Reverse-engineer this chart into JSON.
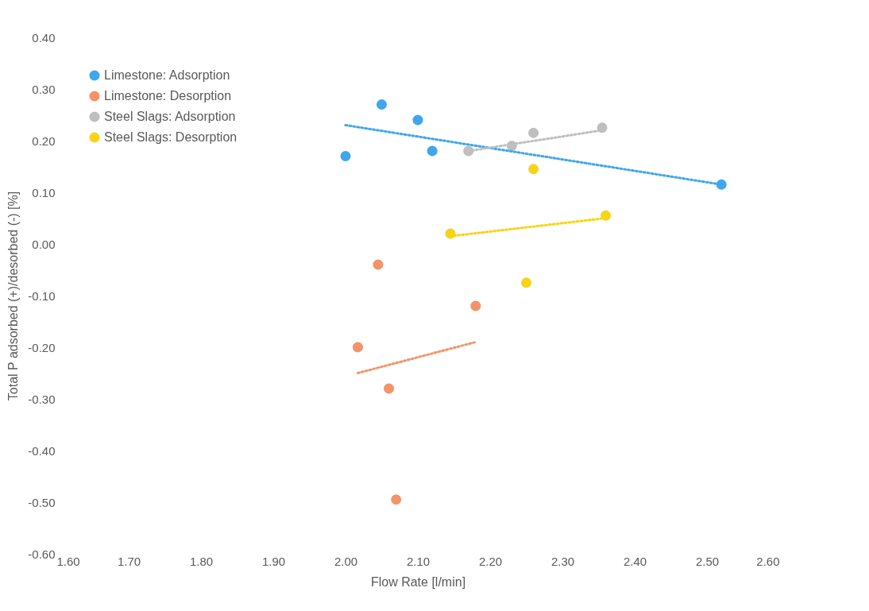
{
  "chart_data": {
    "type": "scatter",
    "xlabel": "Flow Rate [l/min]",
    "ylabel": "Total P adsorbed (+)/desorbed (-) [%]",
    "series": [
      {
        "name": "Limestone: Adsorption",
        "color": "#3fa6ef",
        "marker": "circle",
        "x": [
          2.0,
          2.05,
          2.1,
          2.12,
          2.52
        ],
        "values": [
          0.17,
          0.27,
          0.24,
          0.18,
          0.115
        ]
      },
      {
        "name": "Limestone: Desorption",
        "color": "#f4936a",
        "marker": "circle",
        "x": [
          2.017,
          2.045,
          2.06,
          2.07,
          2.18
        ],
        "values": [
          -0.2,
          -0.04,
          -0.28,
          -0.495,
          -0.12
        ]
      },
      {
        "name": "Steel Slags: Adsorption",
        "color": "#bfbfbf",
        "marker": "circle",
        "x": [
          2.17,
          2.23,
          2.26,
          2.355
        ],
        "values": [
          0.18,
          0.19,
          0.215,
          0.225
        ]
      },
      {
        "name": "Steel Slags: Desorption",
        "color": "#f7d417",
        "marker": "circle",
        "x": [
          2.145,
          2.25,
          2.26,
          2.36
        ],
        "values": [
          0.02,
          -0.075,
          0.145,
          0.055
        ]
      },
      {
        "type": "line",
        "line_style": "dotted",
        "color": "#3fa6ef",
        "x": [
          2.0,
          2.52
        ],
        "values": [
          0.23,
          0.115
        ]
      },
      {
        "type": "line",
        "line_style": "dotted",
        "color": "#f4936a",
        "x": [
          2.017,
          2.18
        ],
        "values": [
          -0.25,
          -0.19
        ]
      },
      {
        "type": "line",
        "line_style": "dotted",
        "color": "#bfbfbf",
        "x": [
          2.17,
          2.355
        ],
        "values": [
          0.18,
          0.22
        ]
      },
      {
        "type": "line",
        "line_style": "dotted",
        "color": "#f7d417",
        "x": [
          2.145,
          2.36
        ],
        "values": [
          0.015,
          0.05
        ]
      }
    ],
    "xlim": [
      1.6,
      2.6
    ],
    "xticks": [
      {
        "value": 1.6,
        "label": "1.60"
      },
      {
        "value": 1.7,
        "label": "1.70"
      },
      {
        "value": 1.8,
        "label": "1.80"
      },
      {
        "value": 1.9,
        "label": "1.90"
      },
      {
        "value": 2.0,
        "label": "2.00"
      },
      {
        "value": 2.1,
        "label": "2.10"
      },
      {
        "value": 2.2,
        "label": "2.20"
      },
      {
        "value": 2.3,
        "label": "2.30"
      },
      {
        "value": 2.4,
        "label": "2.40"
      },
      {
        "value": 2.5,
        "label": "2.50"
      },
      {
        "value": 2.6,
        "label": "2.60"
      }
    ],
    "ylim": [
      -0.6,
      0.4
    ],
    "yticks": [
      {
        "value": -0.6,
        "label": "-0.60"
      },
      {
        "value": -0.5,
        "label": "-0.50"
      },
      {
        "value": -0.4,
        "label": "-0.40"
      },
      {
        "value": -0.3,
        "label": "-0.30"
      },
      {
        "value": -0.2,
        "label": "-0.20"
      },
      {
        "value": -0.1,
        "label": "-0.10"
      },
      {
        "value": 0,
        "label": "0.00"
      },
      {
        "value": 0.1,
        "label": "0.10"
      },
      {
        "value": 0.2,
        "label": "0.20"
      },
      {
        "value": 0.3,
        "label": "0.30"
      },
      {
        "value": 0.4,
        "label": "0.40"
      }
    ],
    "legend": "top left"
  }
}
